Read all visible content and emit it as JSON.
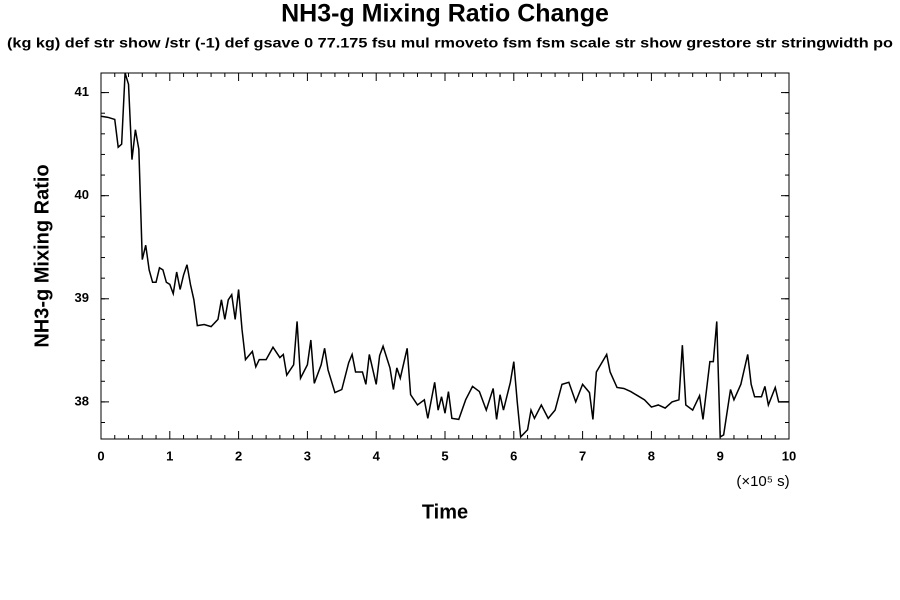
{
  "chart_data": {
    "type": "line",
    "title": "NH3-g Mixing Ratio Change",
    "subtitle": "(kg kg) def str show /str (-1) def gsave 0 77.175 fsu mul rmoveto fsm fsm scale str show grestore str stringwidth po",
    "xlabel": "Time",
    "ylabel": "NH3-g Mixing Ratio",
    "x_unit": "(×10⁵ s)",
    "xlim": [
      0,
      10
    ],
    "ylim": [
      37.64,
      41.19
    ],
    "xticks": [
      0,
      1,
      2,
      3,
      4,
      5,
      6,
      7,
      8,
      9,
      10
    ],
    "yticks": [
      38,
      39,
      40,
      41
    ],
    "grid": false,
    "x": [
      0,
      0.1,
      0.2,
      0.25,
      0.3,
      0.35,
      0.4,
      0.45,
      0.5,
      0.55,
      0.6,
      0.65,
      0.7,
      0.75,
      0.8,
      0.85,
      0.9,
      0.95,
      1.0,
      1.05,
      1.1,
      1.15,
      1.2,
      1.25,
      1.3,
      1.35,
      1.4,
      1.5,
      1.6,
      1.7,
      1.75,
      1.8,
      1.85,
      1.9,
      1.95,
      2.0,
      2.05,
      2.1,
      2.2,
      2.25,
      2.3,
      2.4,
      2.5,
      2.6,
      2.65,
      2.7,
      2.8,
      2.85,
      2.9,
      3.0,
      3.05,
      3.1,
      3.2,
      3.25,
      3.3,
      3.4,
      3.5,
      3.6,
      3.65,
      3.7,
      3.8,
      3.85,
      3.9,
      4.0,
      4.05,
      4.1,
      4.2,
      4.25,
      4.3,
      4.35,
      4.45,
      4.5,
      4.6,
      4.7,
      4.75,
      4.85,
      4.9,
      4.95,
      5.0,
      5.05,
      5.1,
      5.2,
      5.3,
      5.4,
      5.5,
      5.6,
      5.7,
      5.75,
      5.8,
      5.85,
      5.95,
      6.0,
      6.05,
      6.1,
      6.2,
      6.25,
      6.3,
      6.4,
      6.5,
      6.6,
      6.7,
      6.8,
      6.9,
      7.0,
      7.1,
      7.15,
      7.2,
      7.35,
      7.4,
      7.5,
      7.6,
      7.7,
      7.8,
      7.9,
      8.0,
      8.1,
      8.2,
      8.3,
      8.4,
      8.45,
      8.5,
      8.6,
      8.7,
      8.75,
      8.85,
      8.9,
      8.95,
      9.0,
      9.05,
      9.15,
      9.2,
      9.3,
      9.4,
      9.45,
      9.5,
      9.6,
      9.65,
      9.7,
      9.8,
      9.85,
      10.0
    ],
    "series": [
      {
        "color": "#000000",
        "values": [
          40.77,
          40.76,
          40.74,
          40.47,
          40.5,
          41.19,
          41.08,
          40.35,
          40.64,
          40.45,
          39.38,
          39.52,
          39.28,
          39.16,
          39.16,
          39.3,
          39.28,
          39.16,
          39.14,
          39.05,
          39.26,
          39.09,
          39.23,
          39.33,
          39.14,
          38.99,
          38.74,
          38.75,
          38.73,
          38.8,
          38.99,
          38.8,
          38.99,
          39.04,
          38.8,
          39.09,
          38.7,
          38.41,
          38.49,
          38.34,
          38.41,
          38.41,
          38.53,
          38.43,
          38.46,
          38.26,
          38.36,
          38.78,
          38.23,
          38.36,
          38.6,
          38.18,
          38.36,
          38.52,
          38.31,
          38.09,
          38.12,
          38.38,
          38.46,
          38.29,
          38.29,
          38.17,
          38.46,
          38.17,
          38.45,
          38.54,
          38.33,
          38.12,
          38.33,
          38.23,
          38.52,
          38.07,
          37.97,
          38.02,
          37.84,
          38.19,
          37.92,
          38.05,
          37.89,
          38.1,
          37.84,
          37.83,
          38.02,
          38.15,
          38.1,
          37.92,
          38.13,
          37.83,
          38.07,
          37.92,
          38.19,
          38.39,
          38.0,
          37.66,
          37.73,
          37.92,
          37.84,
          37.97,
          37.84,
          37.92,
          38.17,
          38.19,
          38.0,
          38.17,
          38.09,
          37.83,
          38.29,
          38.46,
          38.29,
          38.14,
          38.13,
          38.1,
          38.06,
          38.02,
          37.95,
          37.97,
          37.94,
          38.0,
          38.02,
          38.55,
          37.97,
          37.92,
          38.06,
          37.83,
          38.39,
          38.39,
          38.78,
          37.66,
          37.68,
          38.12,
          38.02,
          38.17,
          38.46,
          38.17,
          38.05,
          38.05,
          38.15,
          37.97,
          38.14,
          38.0,
          38.0
        ]
      }
    ]
  }
}
